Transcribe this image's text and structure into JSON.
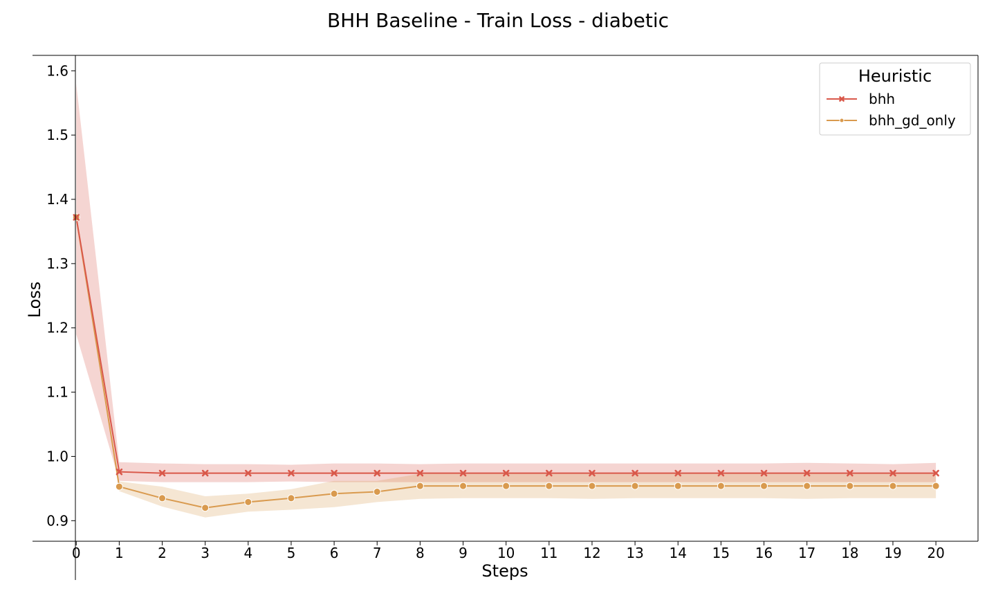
{
  "chart_data": {
    "type": "line",
    "title": "BHH Baseline - Train Loss - diabetic",
    "xlabel": "Steps",
    "ylabel": "Loss",
    "x": [
      0,
      1,
      2,
      3,
      4,
      5,
      6,
      7,
      8,
      9,
      10,
      11,
      12,
      13,
      14,
      15,
      16,
      17,
      18,
      19,
      20
    ],
    "xlim": [
      -0.02,
      20.98
    ],
    "ylim": [
      0.868,
      1.624
    ],
    "yticks": [
      0.9,
      1.0,
      1.1,
      1.2,
      1.3,
      1.4,
      1.5,
      1.6
    ],
    "ytick_labels": [
      "0.9",
      "1.0",
      "1.1",
      "1.2",
      "1.3",
      "1.4",
      "1.5",
      "1.6"
    ],
    "xtick_labels": [
      "0",
      "1",
      "2",
      "3",
      "4",
      "5",
      "6",
      "7",
      "8",
      "9",
      "10",
      "11",
      "12",
      "13",
      "14",
      "15",
      "16",
      "17",
      "18",
      "19",
      "20"
    ],
    "grid": false,
    "legend": {
      "title": "Heuristic",
      "placement": "top-right"
    },
    "series": [
      {
        "name": "bhh",
        "color": "#d9584a",
        "marker": "x",
        "values": [
          1.372,
          0.976,
          0.974,
          0.974,
          0.974,
          0.974,
          0.974,
          0.974,
          0.974,
          0.974,
          0.974,
          0.974,
          0.974,
          0.974,
          0.974,
          0.974,
          0.974,
          0.974,
          0.974,
          0.974,
          0.974
        ],
        "band_lower": [
          1.19,
          0.962,
          0.96,
          0.96,
          0.96,
          0.961,
          0.96,
          0.96,
          0.96,
          0.96,
          0.96,
          0.96,
          0.96,
          0.96,
          0.96,
          0.96,
          0.96,
          0.96,
          0.96,
          0.96,
          0.96
        ],
        "band_upper": [
          1.58,
          0.991,
          0.989,
          0.988,
          0.988,
          0.987,
          0.989,
          0.989,
          0.988,
          0.989,
          0.989,
          0.989,
          0.989,
          0.989,
          0.989,
          0.989,
          0.989,
          0.99,
          0.989,
          0.988,
          0.99
        ]
      },
      {
        "name": "bhh_gd_only",
        "color": "#d99a4e",
        "marker": "o",
        "values": [
          1.372,
          0.953,
          0.935,
          0.92,
          0.929,
          0.935,
          0.942,
          0.945,
          0.954,
          0.954,
          0.954,
          0.954,
          0.954,
          0.954,
          0.954,
          0.954,
          0.954,
          0.954,
          0.954,
          0.954,
          0.954
        ],
        "band_lower": [
          1.372,
          0.946,
          0.922,
          0.905,
          0.914,
          0.917,
          0.921,
          0.929,
          0.934,
          0.935,
          0.935,
          0.935,
          0.934,
          0.935,
          0.935,
          0.935,
          0.935,
          0.934,
          0.935,
          0.935,
          0.935
        ],
        "band_upper": [
          1.372,
          0.961,
          0.953,
          0.938,
          0.942,
          0.949,
          0.962,
          0.962,
          0.973,
          0.973,
          0.973,
          0.973,
          0.973,
          0.973,
          0.973,
          0.973,
          0.973,
          0.973,
          0.973,
          0.973,
          0.973
        ]
      }
    ]
  }
}
